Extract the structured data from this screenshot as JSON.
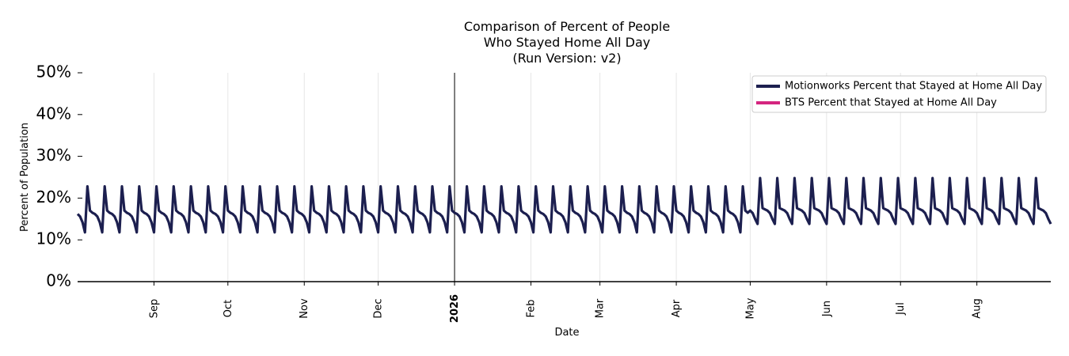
{
  "chart_data": {
    "type": "line",
    "title_lines": [
      "Comparison of Percent of People",
      "Who Stayed Home All Day",
      "(Run Version: v2)"
    ],
    "xlabel": "Date",
    "ylabel": "Percent of Population",
    "x_range": [
      "2025-08-01",
      "2026-08-31"
    ],
    "ylim": [
      0,
      50
    ],
    "y_ticks": [
      {
        "value": 0,
        "label": "0%"
      },
      {
        "value": 10,
        "label": "10%"
      },
      {
        "value": 20,
        "label": "20%"
      },
      {
        "value": 30,
        "label": "30%"
      },
      {
        "value": 40,
        "label": "40%"
      },
      {
        "value": 50,
        "label": "50%"
      }
    ],
    "x_ticks": [
      {
        "date": "2025-09-01",
        "label": "Sep",
        "bold": false
      },
      {
        "date": "2025-10-01",
        "label": "Oct",
        "bold": false
      },
      {
        "date": "2025-11-01",
        "label": "Nov",
        "bold": false
      },
      {
        "date": "2025-12-01",
        "label": "Dec",
        "bold": false
      },
      {
        "date": "2026-01-01",
        "label": "2026",
        "bold": true
      },
      {
        "date": "2026-02-01",
        "label": "Feb",
        "bold": false
      },
      {
        "date": "2026-03-01",
        "label": "Mar",
        "bold": false
      },
      {
        "date": "2026-04-01",
        "label": "Apr",
        "bold": false
      },
      {
        "date": "2026-05-01",
        "label": "May",
        "bold": false
      },
      {
        "date": "2026-06-01",
        "label": "Jun",
        "bold": false
      },
      {
        "date": "2026-07-01",
        "label": "Jul",
        "bold": false
      },
      {
        "date": "2026-08-01",
        "label": "Aug",
        "bold": false
      }
    ],
    "vertical_marker": "2026-01-01",
    "grid": "vertical",
    "legend_position": "top-right",
    "series": [
      {
        "name": "Motionworks Percent that Stayed at Home All Day",
        "color": "#1c1f4f",
        "weekly_pattern": [
          22.8,
          17.0,
          16.5,
          16.2,
          15.6,
          14.2,
          11.8
        ],
        "weekly_pattern_late": [
          24.8,
          17.6,
          17.3,
          17.0,
          16.4,
          15.0,
          13.8
        ],
        "first_peak_date": "2025-08-05",
        "first_date": "2025-08-01",
        "pattern_switch_date": "2026-05-01"
      },
      {
        "name": "BTS Percent that Stayed at Home All Day",
        "color": "#d4257f",
        "values": []
      }
    ]
  }
}
